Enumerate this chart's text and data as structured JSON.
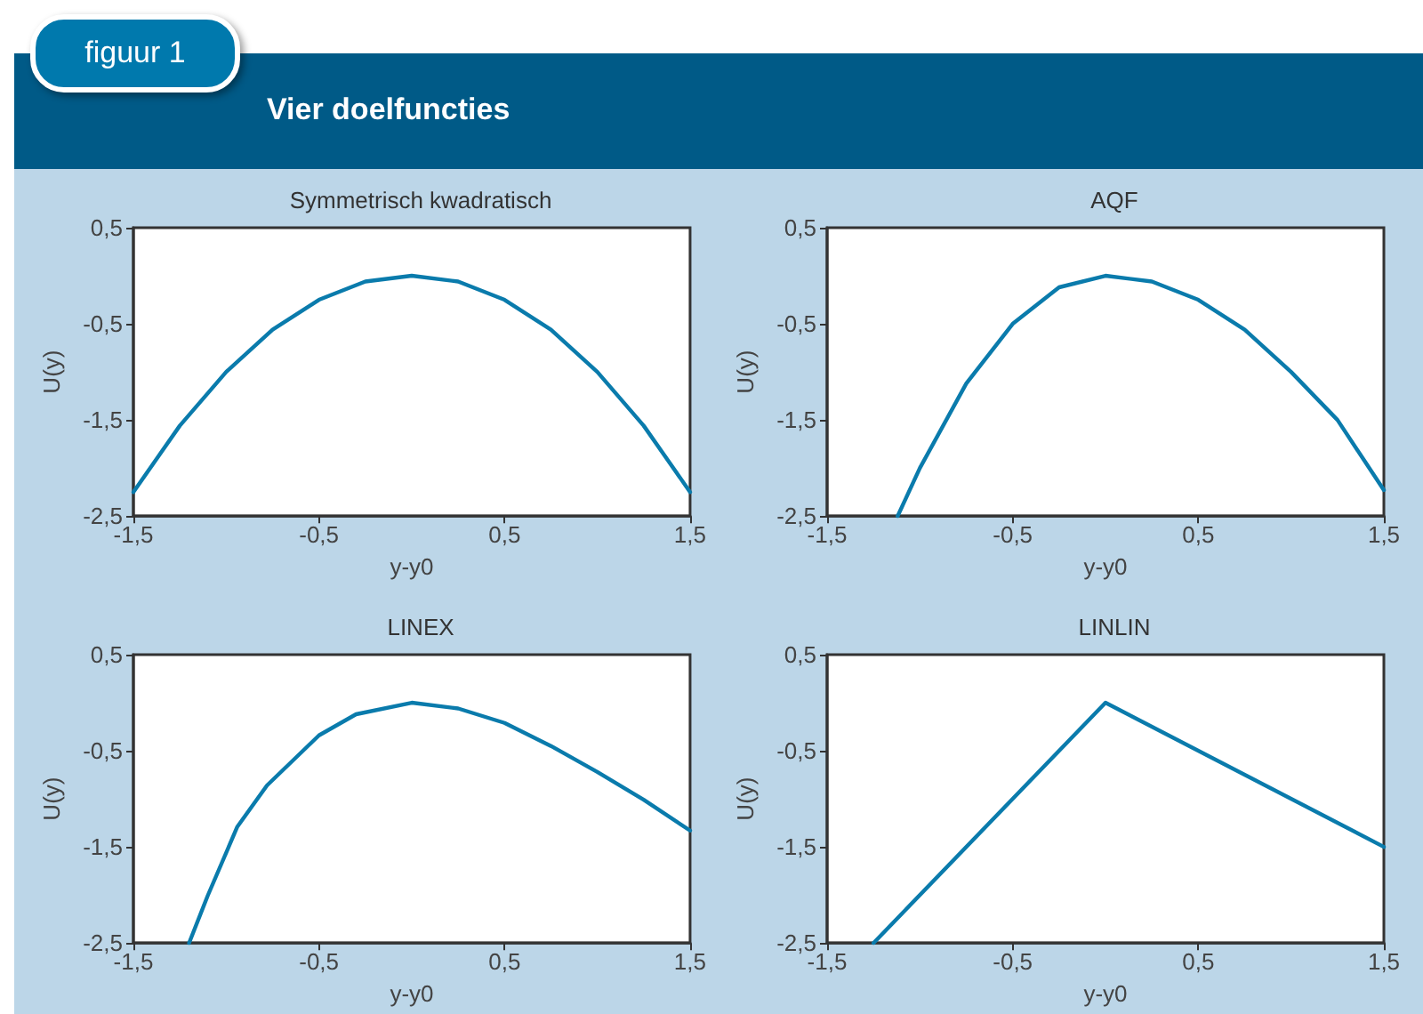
{
  "chart_data": [
    {
      "type": "other",
      "title": "Vier doelfuncties",
      "annotations": [
        "figuur 1"
      ]
    },
    {
      "type": "line",
      "title": "Symmetrisch kwadratisch",
      "xlabel": "y-y0",
      "ylabel": "U(y)",
      "x": [
        -1.5,
        -1.25,
        -1,
        -0.75,
        -0.5,
        -0.25,
        0,
        0.25,
        0.5,
        0.75,
        1,
        1.25,
        1.5
      ],
      "series": [
        {
          "color": "#0a7bac",
          "values": [
            -2.25,
            -1.56,
            -1,
            -0.56,
            -0.25,
            -0.06,
            0,
            -0.06,
            -0.25,
            -0.56,
            -1,
            -1.56,
            -2.25
          ]
        }
      ],
      "xlim": [
        -1.5,
        1.5
      ],
      "xticks": [
        {
          "value": -1.5,
          "label": "-1,5"
        },
        {
          "value": -0.5,
          "label": "-0,5"
        },
        {
          "value": 0.5,
          "label": "0,5"
        },
        {
          "value": 1.5,
          "label": "1,5"
        }
      ],
      "ylim": [
        -2.5,
        0.5
      ],
      "yticks": [
        {
          "value": -2.5,
          "label": "-2,5"
        },
        {
          "value": -1.5,
          "label": "-1,5"
        },
        {
          "value": -0.5,
          "label": "-0,5"
        },
        {
          "value": 0.5,
          "label": "0,5"
        }
      ],
      "grid": false,
      "marker": "none",
      "line_style": "solid"
    },
    {
      "type": "line",
      "title": "AQF",
      "xlabel": "y-y0",
      "ylabel": "U(y)",
      "x": [
        -1.12,
        -1,
        -0.75,
        -0.5,
        -0.25,
        0,
        0.25,
        0.5,
        0.75,
        1,
        1.25,
        1.5
      ],
      "series": [
        {
          "color": "#0a7bac",
          "values": [
            -2.5,
            -2,
            -1.12,
            -0.5,
            -0.12,
            0,
            -0.06,
            -0.25,
            -0.56,
            -1,
            -1.5,
            -2.23
          ]
        }
      ],
      "xlim": [
        -1.5,
        1.5
      ],
      "xticks": [
        {
          "value": -1.5,
          "label": "-1,5"
        },
        {
          "value": -0.5,
          "label": "-0,5"
        },
        {
          "value": 0.5,
          "label": "0,5"
        },
        {
          "value": 1.5,
          "label": "1,5"
        }
      ],
      "ylim": [
        -2.5,
        0.5
      ],
      "yticks": [
        {
          "value": -2.5,
          "label": "-2,5"
        },
        {
          "value": -1.5,
          "label": "-1,5"
        },
        {
          "value": -0.5,
          "label": "-0,5"
        },
        {
          "value": 0.5,
          "label": "0,5"
        }
      ],
      "grid": false,
      "marker": "none",
      "line_style": "solid"
    },
    {
      "type": "line",
      "title": "LINEX",
      "xlabel": "y-y0",
      "ylabel": "U(y)",
      "x": [
        -1.2,
        -1.1,
        -0.94,
        -0.78,
        -0.5,
        -0.3,
        0,
        0.25,
        0.5,
        0.75,
        1,
        1.25,
        1.5
      ],
      "series": [
        {
          "color": "#0a7bac",
          "values": [
            -2.5,
            -2.01,
            -1.29,
            -0.86,
            -0.34,
            -0.12,
            0,
            -0.06,
            -0.21,
            -0.45,
            -0.72,
            -1.01,
            -1.33
          ]
        }
      ],
      "xlim": [
        -1.5,
        1.5
      ],
      "xticks": [
        {
          "value": -1.5,
          "label": "-1,5"
        },
        {
          "value": -0.5,
          "label": "-0,5"
        },
        {
          "value": 0.5,
          "label": "0,5"
        },
        {
          "value": 1.5,
          "label": "1,5"
        }
      ],
      "ylim": [
        -2.5,
        0.5
      ],
      "yticks": [
        {
          "value": -2.5,
          "label": "-2,5"
        },
        {
          "value": -1.5,
          "label": "-1,5"
        },
        {
          "value": -0.5,
          "label": "-0,5"
        },
        {
          "value": 0.5,
          "label": "0,5"
        }
      ],
      "grid": false,
      "marker": "none",
      "line_style": "solid"
    },
    {
      "type": "line",
      "title": "LINLIN",
      "xlabel": "y-y0",
      "ylabel": "U(y)",
      "x": [
        -1.25,
        0,
        1.5
      ],
      "series": [
        {
          "color": "#0a7bac",
          "values": [
            -2.5,
            0,
            -1.5
          ]
        }
      ],
      "xlim": [
        -1.5,
        1.5
      ],
      "xticks": [
        {
          "value": -1.5,
          "label": "-1,5"
        },
        {
          "value": -0.5,
          "label": "-0,5"
        },
        {
          "value": 0.5,
          "label": "0,5"
        },
        {
          "value": 1.5,
          "label": "1,5"
        }
      ],
      "ylim": [
        -2.5,
        0.5
      ],
      "yticks": [
        {
          "value": -2.5,
          "label": "-2,5"
        },
        {
          "value": -1.5,
          "label": "-1,5"
        },
        {
          "value": -0.5,
          "label": "-0,5"
        },
        {
          "value": 0.5,
          "label": "0,5"
        }
      ],
      "grid": false,
      "marker": "none",
      "line_style": "solid"
    }
  ]
}
